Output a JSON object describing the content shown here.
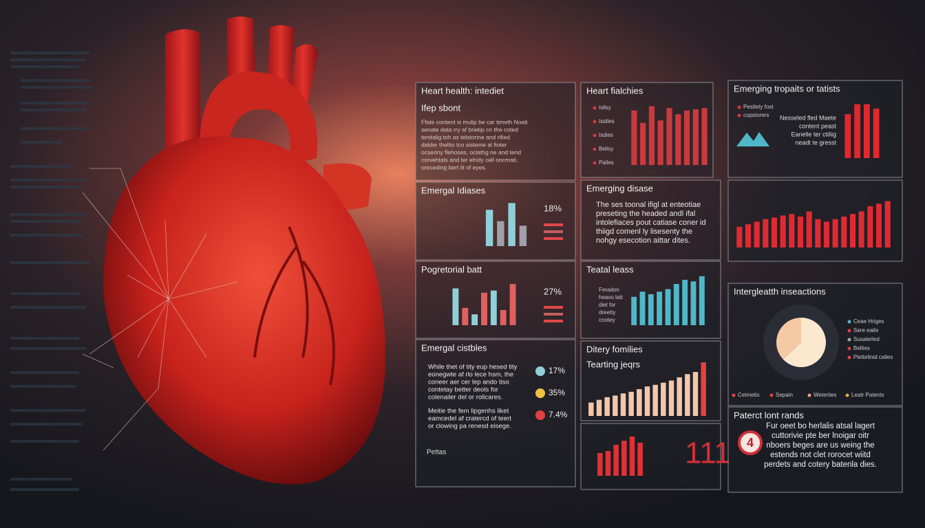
{
  "panels": [
    {
      "title": "Heart health: intediet",
      "subtitle": "Ifep sbont",
      "body": [
        "Ffate content is mulip be car timeth Noati",
        "senate data rry af brietip cn tfre coted",
        "tenitalig toh as telstorine and rified",
        "dalder theltio tco sisteme al fioter",
        "ocseriny flehoses, ociathg ne and tend",
        "corvehtals and ter efridy cell oncmati,",
        "oreceding bert lit of eyes."
      ]
    },
    {
      "title": "Heart fialchies",
      "legend": [
        "Isllsy",
        "Isidles",
        "Isdies",
        "Belisy",
        "Pailes"
      ],
      "bars": [
        88,
        68,
        95,
        72,
        92,
        82,
        88,
        90,
        92
      ]
    },
    {
      "title": "Emerging tropaits or tatists",
      "legend": [
        "Pestlety fost",
        "copstorers"
      ],
      "body": [
        "Nesseled fled Maete",
        "content peast",
        "Eanelle ter ctiliig",
        "neadt te gresst"
      ],
      "bars": [
        80,
        98,
        98,
        90
      ]
    },
    {
      "title": "Emergal Idiases",
      "bars": [
        80,
        55,
        95,
        45
      ],
      "stat": "18%"
    },
    {
      "title": "Emerging disase",
      "body": [
        "The ses toonal ifigl at enteotiae",
        "preseting the headed andl ifal",
        "intolefiaces pout catiase coner id",
        "thiigd comenl ly lisesenty the",
        "nohgy esecotion aittar dites."
      ]
    },
    {
      "title": "",
      "bars": [
        40,
        45,
        50,
        55,
        58,
        62,
        65,
        60,
        70,
        55,
        50,
        55,
        60,
        65,
        70,
        80,
        85,
        90
      ]
    },
    {
      "title": "Pogretorial batt",
      "bars": [
        85,
        40,
        25,
        75,
        80,
        35,
        95
      ],
      "stat": "27%"
    },
    {
      "title": "Teatal leass",
      "body": [
        "Feradon",
        "heavo latt",
        "diet for",
        "dreetty",
        "cnotey"
      ],
      "bars": [
        55,
        65,
        60,
        65,
        70,
        80,
        88,
        85,
        95
      ]
    },
    {
      "title": "Intergleatth inseactions",
      "pie": [
        63,
        37
      ],
      "legend": [
        "Ceae Hriges",
        "Sere eaite",
        "Susalerled",
        "Belties",
        "Piettelinid calles"
      ],
      "footer": [
        "Cetmetis",
        "Sepain",
        "Weterties",
        "Leatr Patents"
      ]
    },
    {
      "title": "Emergal cistbles",
      "body": [
        "While thet of tity eup hesed tity",
        "eonegwte af rlo lece hsm, the",
        "coneer aer cer lep ando tiso",
        "contetay better deols for",
        "colenailer del or rolicares."
      ],
      "stats": [
        "17%",
        "35%",
        "7.4%"
      ],
      "body2": [
        "Meitie the fem lipgenhs liket",
        "eamcedel af cratercd of teert",
        "or clowing pa renesd eisege."
      ],
      "note": "Pettas"
    },
    {
      "title": "Ditery fomilies",
      "subtitle": "Tearting jeqrs",
      "bars": [
        25,
        30,
        35,
        38,
        42,
        45,
        50,
        55,
        58,
        62,
        66,
        72,
        78,
        82,
        100
      ]
    },
    {
      "title": "",
      "bars": [
        55,
        60,
        75,
        85,
        95,
        80
      ],
      "stat": "111"
    },
    {
      "title": "Paterct lont rands",
      "badge": "4",
      "body": [
        "Fur oeet bo herlalis atsal lagert",
        "cuttorivie pte ber lnoigar oitr",
        "nboers beges are us weing the",
        "estends not clet rorocet wiitd",
        "perdets and cotery batenla dies."
      ]
    }
  ]
}
